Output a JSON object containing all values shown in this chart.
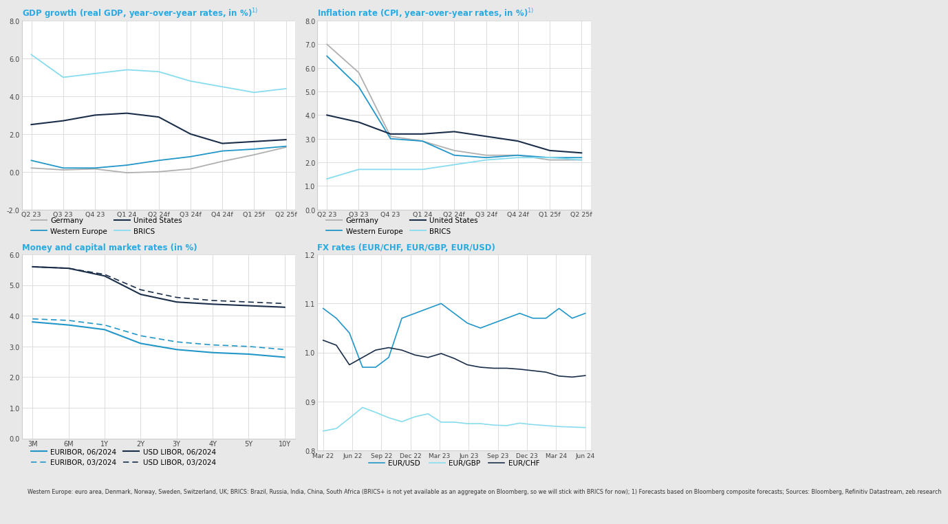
{
  "background_color": "#e8e8e8",
  "panel_bg": "#ffffff",
  "title_color": "#29abe2",
  "title1": "GDP growth (real GDP, year-over-year rates, in %)$^{1)}$",
  "title2": "Inflation rate (CPI, year-over-year rates, in %)$^{1)}$",
  "title3": "Money and capital market rates (in %)",
  "title4": "FX rates (EUR/CHF, EUR/GBP, EUR/USD)",
  "gdp_xticks": [
    "Q2 23",
    "Q3 23",
    "Q4 23",
    "Q1 24",
    "Q2 24f",
    "Q3 24f",
    "Q4 24f",
    "Q1 25f",
    "Q2 25f"
  ],
  "gdp_germany": [
    0.2,
    0.1,
    0.15,
    -0.05,
    0.0,
    0.15,
    0.55,
    0.9,
    1.3
  ],
  "gdp_western_europe": [
    0.6,
    0.2,
    0.2,
    0.35,
    0.6,
    0.8,
    1.1,
    1.2,
    1.35
  ],
  "gdp_us": [
    2.5,
    2.7,
    3.0,
    3.1,
    2.9,
    2.0,
    1.5,
    1.6,
    1.7
  ],
  "gdp_brics": [
    6.2,
    5.0,
    5.2,
    5.4,
    5.3,
    4.8,
    4.5,
    4.2,
    4.4
  ],
  "gdp_ylim": [
    -2.0,
    8.0
  ],
  "gdp_yticks": [
    -2.0,
    0.0,
    2.0,
    4.0,
    6.0,
    8.0
  ],
  "cpi_germany": [
    7.0,
    5.8,
    3.1,
    2.9,
    2.5,
    2.3,
    2.3,
    2.1,
    2.1
  ],
  "cpi_western_europe": [
    6.5,
    5.2,
    3.0,
    2.9,
    2.3,
    2.2,
    2.3,
    2.2,
    2.2
  ],
  "cpi_us": [
    4.0,
    3.7,
    3.2,
    3.2,
    3.3,
    3.1,
    2.9,
    2.5,
    2.4
  ],
  "cpi_brics": [
    1.3,
    1.7,
    1.7,
    1.7,
    1.9,
    2.1,
    2.2,
    2.2,
    2.1
  ],
  "cpi_ylim": [
    0.0,
    8.0
  ],
  "cpi_yticks": [
    0.0,
    1.0,
    2.0,
    3.0,
    4.0,
    5.0,
    6.0,
    7.0,
    8.0
  ],
  "mc_xticks": [
    "3M",
    "6M",
    "1Y",
    "2Y",
    "3Y",
    "4Y",
    "5Y",
    "10Y"
  ],
  "mc_x": [
    0,
    1,
    2,
    3,
    4,
    5,
    6,
    7
  ],
  "mc_euribor_06": [
    3.8,
    3.7,
    3.55,
    3.1,
    2.9,
    2.8,
    2.75,
    2.65
  ],
  "mc_euribor_03": [
    3.9,
    3.85,
    3.7,
    3.35,
    3.15,
    3.05,
    3.0,
    2.9
  ],
  "mc_usdlibor_06": [
    5.6,
    5.55,
    5.3,
    4.7,
    4.45,
    4.38,
    4.33,
    4.28
  ],
  "mc_usdlibor_03": [
    5.6,
    5.55,
    5.35,
    4.85,
    4.6,
    4.5,
    4.45,
    4.4
  ],
  "mc_ylim": [
    0.0,
    6.0
  ],
  "mc_yticks": [
    0.0,
    1.0,
    2.0,
    3.0,
    4.0,
    5.0,
    6.0
  ],
  "fx_xticks": [
    "Mar 22",
    "Jun 22",
    "Sep 22",
    "Dec 22",
    "Mar 23",
    "Jun 23",
    "Sep 23",
    "Dec 23",
    "Mar 24",
    "Jun 24"
  ],
  "fx_eurusd": [
    1.09,
    1.07,
    1.04,
    0.97,
    0.97,
    0.99,
    1.07,
    1.08,
    1.09,
    1.1,
    1.08,
    1.06,
    1.05,
    1.06,
    1.07,
    1.08,
    1.07,
    1.07,
    1.09,
    1.07,
    1.08
  ],
  "fx_eurgbp": [
    0.84,
    0.845,
    0.866,
    0.888,
    0.878,
    0.867,
    0.859,
    0.869,
    0.875,
    0.858,
    0.858,
    0.855,
    0.855,
    0.852,
    0.851,
    0.856,
    0.853,
    0.851,
    0.849,
    0.848,
    0.847
  ],
  "fx_eurchf": [
    1.025,
    1.015,
    0.975,
    0.99,
    1.005,
    1.01,
    1.005,
    0.995,
    0.99,
    0.998,
    0.988,
    0.975,
    0.97,
    0.968,
    0.968,
    0.966,
    0.963,
    0.96,
    0.952,
    0.95,
    0.953
  ],
  "fx_ylim": [
    0.8,
    1.2
  ],
  "fx_yticks": [
    0.8,
    0.9,
    1.0,
    1.1,
    1.2
  ],
  "color_germany": "#b0b0b0",
  "color_western_europe": "#2196c8",
  "color_us": "#1a2e4a",
  "color_brics": "#87dcf0",
  "color_euribor": "#2196c8",
  "color_usdlibor": "#1a2e4a",
  "color_eurusd": "#2196c8",
  "color_eurgbp": "#87dcf0",
  "color_eurchf": "#1a2e4a",
  "footer_text": "Western Europe: euro area, Denmark, Norway, Sweden, Switzerland, UK; BRICS: Brazil, Russia, India, China, South Africa (BRICS+ is not yet available as an aggregate on Bloomberg, so we will stick with BRICS for now); 1) Forecasts based on Bloomberg composite forecasts; Sources: Bloomberg, Refinitiv Datastream, zeb.research"
}
